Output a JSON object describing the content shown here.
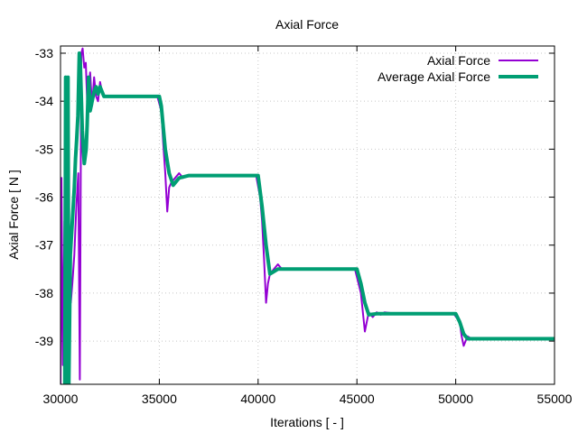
{
  "chart_data": {
    "type": "line",
    "title": "Axial Force",
    "xlabel": "Iterations [ - ]",
    "ylabel": "Axial Force [ N ]",
    "xlim": [
      30000,
      55000
    ],
    "ylim": [
      -39.9,
      -32.85
    ],
    "grid": true,
    "legend_position": "top-right",
    "x_ticks": [
      30000,
      35000,
      40000,
      45000,
      50000,
      55000
    ],
    "x_tick_labels": [
      "30000",
      "35000",
      "40000",
      "45000",
      "50000",
      "55000"
    ],
    "y_ticks": [
      -33,
      -34,
      -35,
      -36,
      -37,
      -38,
      -39
    ],
    "y_tick_labels": [
      "-33",
      "-34",
      "-35",
      "-36",
      "-37",
      "-38",
      "-39"
    ],
    "series": [
      {
        "name": "Axial Force",
        "color": "#9400d3",
        "x": [
          30000,
          30050,
          30120,
          30200,
          30260,
          30320,
          30380,
          30450,
          30520,
          30600,
          30700,
          30800,
          30900,
          30980,
          31050,
          31120,
          31200,
          31280,
          31350,
          31420,
          31500,
          31600,
          31700,
          31800,
          31900,
          32000,
          32100,
          32200,
          32400,
          32600,
          33000,
          34000,
          34900,
          35100,
          35200,
          35300,
          35400,
          35500,
          35600,
          35800,
          36000,
          36200,
          36400,
          37000,
          38000,
          39000,
          39900,
          40100,
          40200,
          40300,
          40400,
          40500,
          40600,
          40800,
          41000,
          41200,
          41400,
          42000,
          43000,
          44000,
          44900,
          45200,
          45300,
          45400,
          45500,
          45600,
          45800,
          46000,
          46200,
          46400,
          47000,
          48000,
          49000,
          49900,
          50200,
          50300,
          50400,
          50500,
          50600,
          50800,
          51000,
          52000,
          53000,
          54000,
          55000
        ],
        "y": [
          -39.9,
          -35.6,
          -39.5,
          -36.5,
          -39.7,
          -36.6,
          -39.8,
          -37.5,
          -38.2,
          -37.8,
          -37.2,
          -36.2,
          -35.5,
          -39.8,
          -33.0,
          -32.9,
          -33.3,
          -33.2,
          -34.0,
          -33.8,
          -33.4,
          -34.1,
          -33.5,
          -33.9,
          -34.0,
          -33.6,
          -33.8,
          -33.9,
          -33.9,
          -33.9,
          -33.9,
          -33.9,
          -33.9,
          -34.2,
          -34.9,
          -35.5,
          -36.3,
          -35.8,
          -35.7,
          -35.6,
          -35.5,
          -35.6,
          -35.55,
          -35.55,
          -35.55,
          -35.55,
          -35.55,
          -36.0,
          -36.5,
          -37.3,
          -38.2,
          -37.8,
          -37.6,
          -37.5,
          -37.4,
          -37.5,
          -37.5,
          -37.5,
          -37.5,
          -37.5,
          -37.5,
          -38.0,
          -38.4,
          -38.8,
          -38.6,
          -38.4,
          -38.5,
          -38.4,
          -38.45,
          -38.4,
          -38.43,
          -38.43,
          -38.43,
          -38.43,
          -38.6,
          -38.9,
          -39.1,
          -39.0,
          -38.9,
          -38.95,
          -38.95,
          -38.95,
          -38.95,
          -38.95,
          -38.95
        ]
      },
      {
        "name": "Average Axial Force",
        "color": "#009e73",
        "x": [
          30220,
          30260,
          30330,
          30380,
          30420,
          30500,
          30600,
          30700,
          30760,
          30820,
          30880,
          30950,
          31000,
          31100,
          31200,
          31300,
          31350,
          31420,
          31500,
          31600,
          31700,
          31800,
          31900,
          32000,
          32200,
          32400,
          33000,
          34000,
          35000,
          35100,
          35300,
          35500,
          35700,
          36000,
          36500,
          37000,
          38000,
          39000,
          40000,
          40200,
          40400,
          40600,
          40800,
          41000,
          42000,
          43000,
          44000,
          45000,
          45200,
          45400,
          45600,
          46000,
          47000,
          48000,
          49000,
          50000,
          50200,
          50400,
          50600,
          51000,
          52000,
          53000,
          54000,
          55000
        ],
        "y": [
          -39.9,
          -33.5,
          -39.9,
          -33.5,
          -39.9,
          -37.2,
          -36.5,
          -35.8,
          -35.2,
          -34.8,
          -34.3,
          -33.0,
          -33.2,
          -34.6,
          -35.3,
          -35.0,
          -34.5,
          -33.5,
          -34.2,
          -34.0,
          -33.8,
          -33.7,
          -33.85,
          -33.7,
          -33.9,
          -33.9,
          -33.9,
          -33.9,
          -33.9,
          -34.1,
          -35.0,
          -35.5,
          -35.75,
          -35.6,
          -35.55,
          -35.55,
          -35.55,
          -35.55,
          -35.55,
          -36.2,
          -37.0,
          -37.6,
          -37.55,
          -37.5,
          -37.5,
          -37.5,
          -37.5,
          -37.5,
          -37.8,
          -38.2,
          -38.45,
          -38.43,
          -38.43,
          -38.43,
          -38.43,
          -38.43,
          -38.6,
          -38.85,
          -38.95,
          -38.95,
          -38.95,
          -38.95,
          -38.95,
          -38.95
        ]
      }
    ]
  }
}
